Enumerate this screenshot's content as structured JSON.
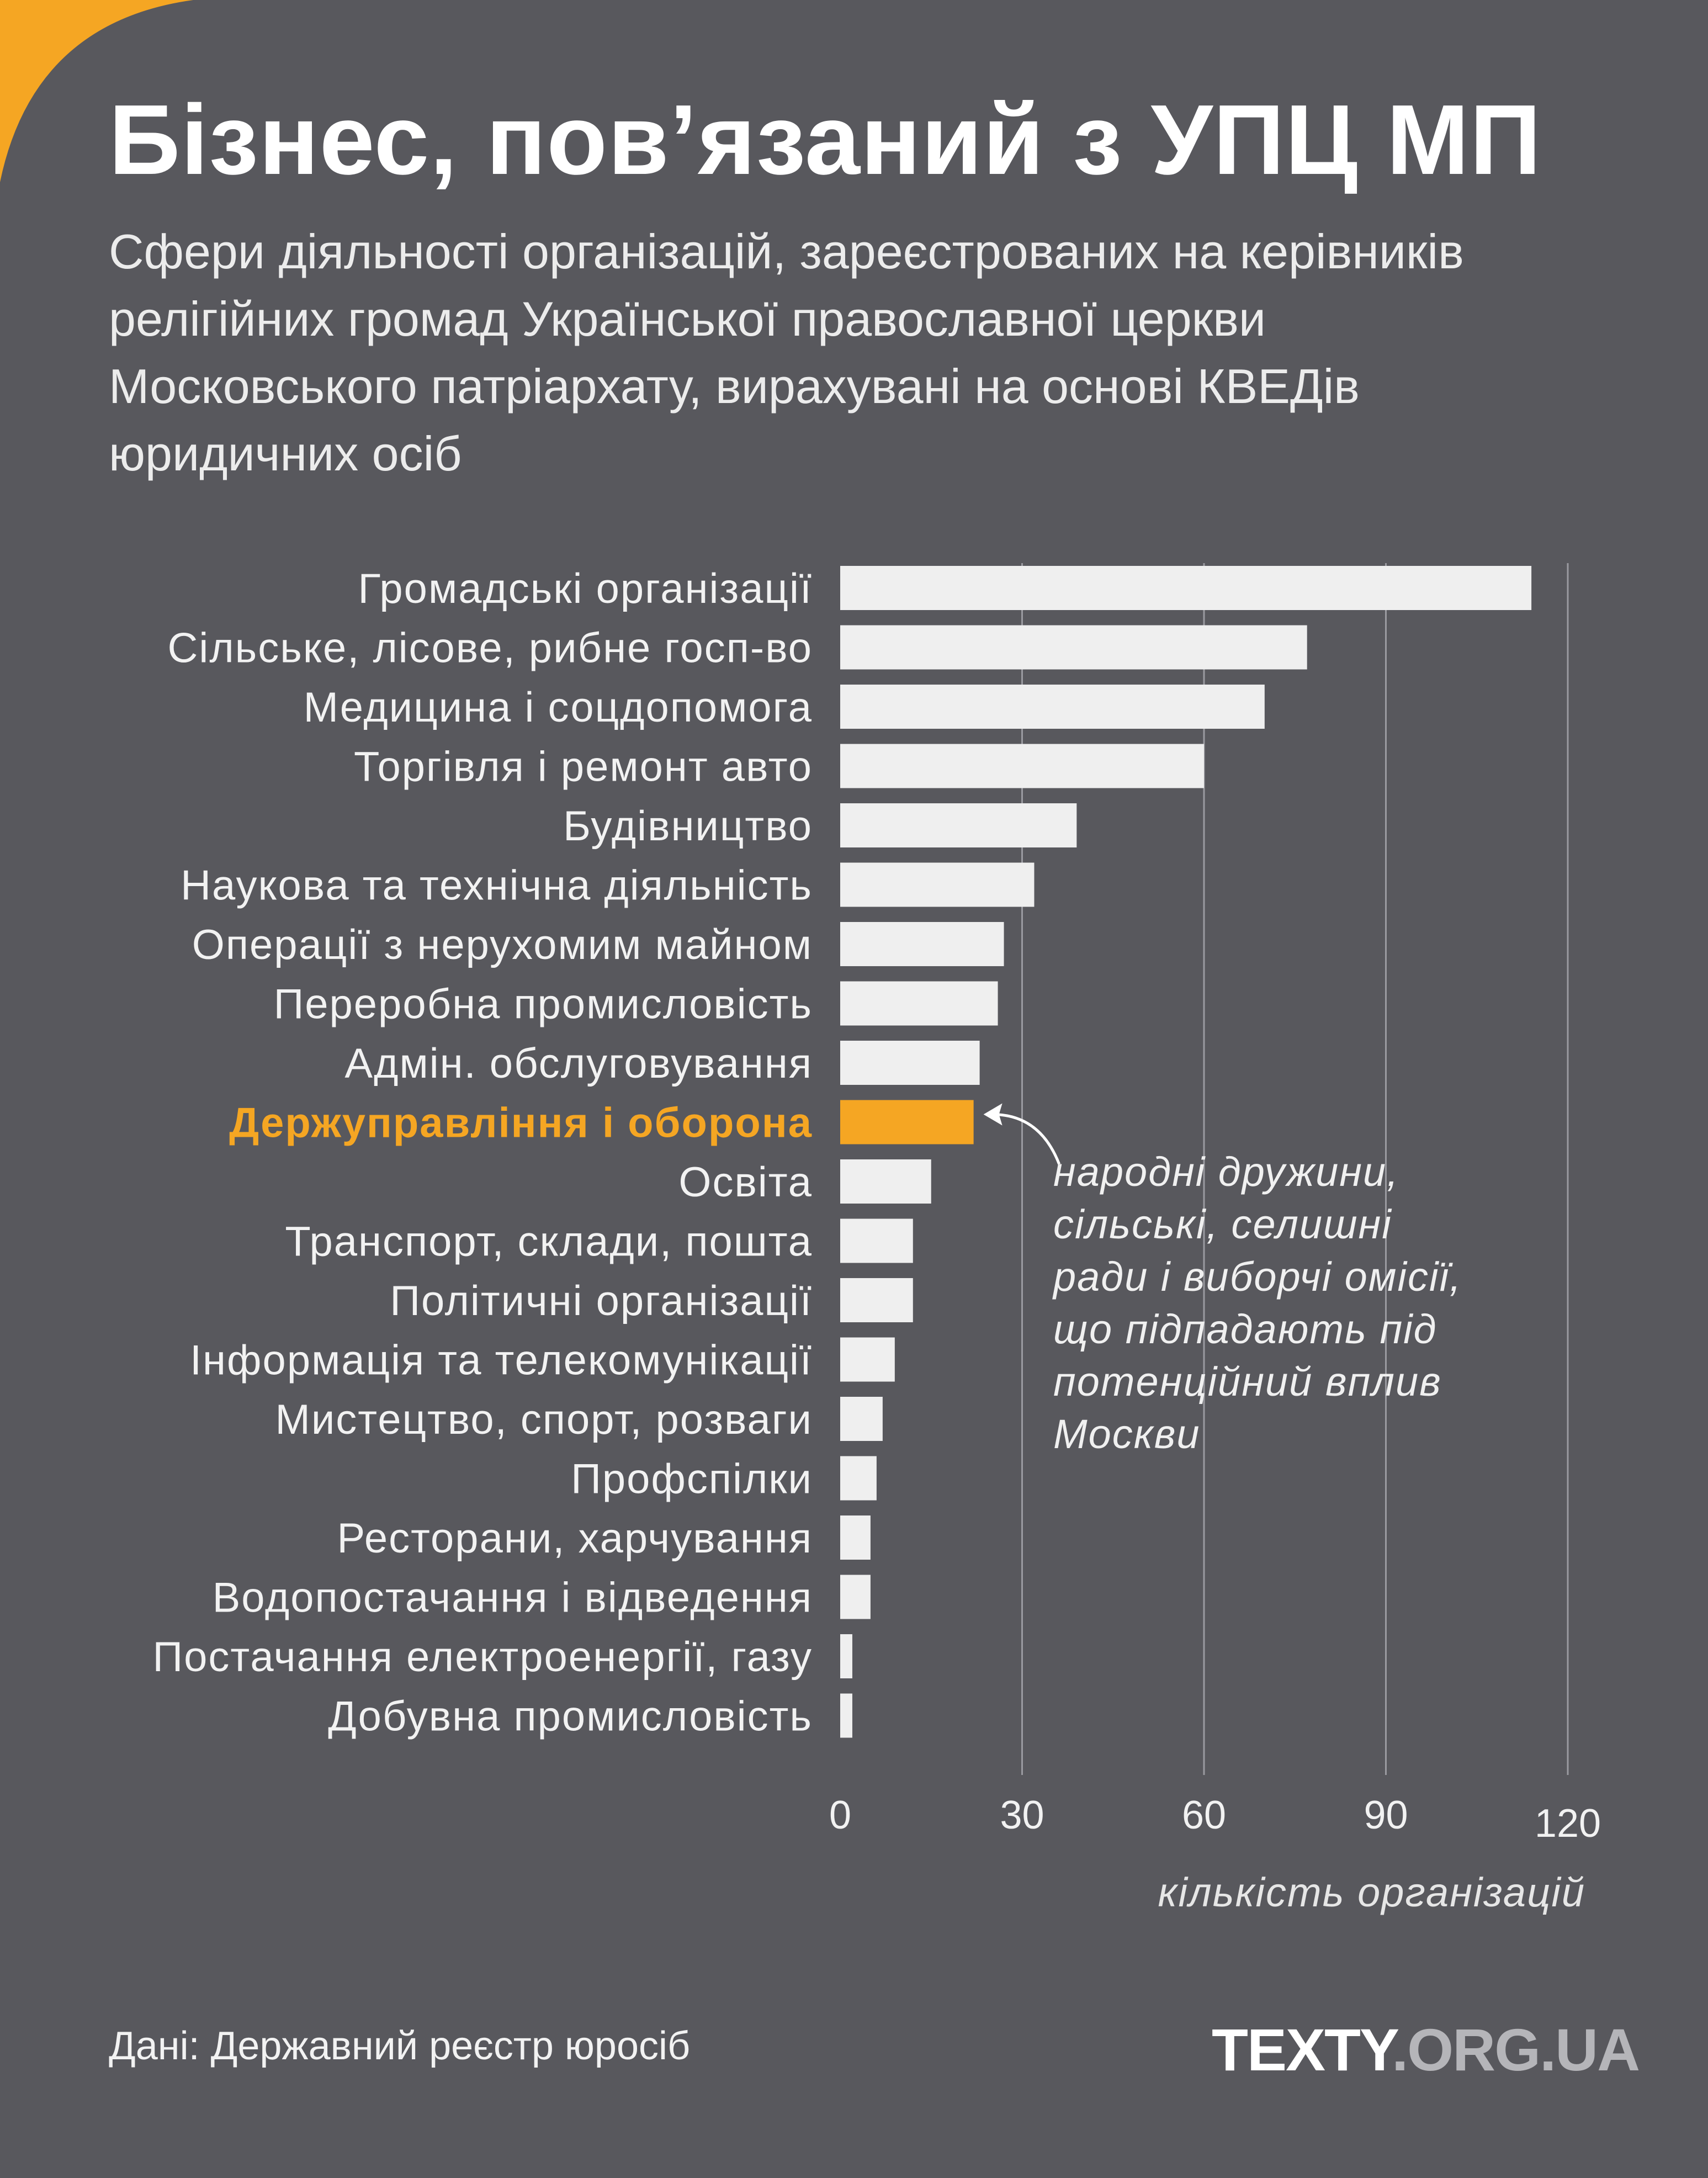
{
  "colors": {
    "background": "#58585d",
    "bar": "#efefef",
    "highlight": "#f5a623",
    "grid": "#9a9aa0",
    "corner": "#f5a623"
  },
  "title": "Бізнес, пов’язаний з УПЦ МП",
  "subtitle_lines": [
    "Сфери діяльності організацій, зареєстрованих на керівників",
    "релігійних громад Української православної церкви",
    "Московського патріархату, вирахувані на основі КВЕДів",
    "юридичних осіб"
  ],
  "chart_data": {
    "type": "bar",
    "orientation": "horizontal",
    "categories": [
      "Громадські організації",
      "Сільське, лісове, рибне госп-во",
      "Медицина і соцдопомога",
      "Торгівля і ремонт авто",
      "Будівництво",
      "Наукова та технічна діяльність",
      "Операції з нерухомим майном",
      "Переробна промисловість",
      "Адмін. обслуговування",
      "Держуправління і оборона",
      "Освіта",
      "Транспорт, склади, пошта",
      "Політичні організації",
      "Інформація та телекомунікації",
      "Мистецтво, спорт, розваги",
      "Профспілки",
      "Ресторани, харчування",
      "Водопостачання і відведення",
      "Постачання електроенергії, газу",
      "Добувна промисловість"
    ],
    "values": [
      114,
      77,
      70,
      60,
      39,
      32,
      27,
      26,
      23,
      22,
      15,
      12,
      12,
      9,
      7,
      6,
      5,
      5,
      2,
      2
    ],
    "highlight_index": 9,
    "xlim": [
      0,
      120
    ],
    "xticks": [
      "0",
      "30",
      "60",
      "90",
      "120"
    ],
    "xlabel": "кількість організацій",
    "grid": true,
    "annotation": {
      "target_index": 9,
      "lines": [
        "народні дружини,",
        "сільські, селишні",
        "ради і виборчі омісії,",
        "що підпадають під",
        "потенційний вплив",
        "Москви"
      ]
    }
  },
  "source": "Дані: Державний реєстр юросіб",
  "logo": {
    "part1": "TEXTY",
    "part2": ".ORG.UA"
  }
}
